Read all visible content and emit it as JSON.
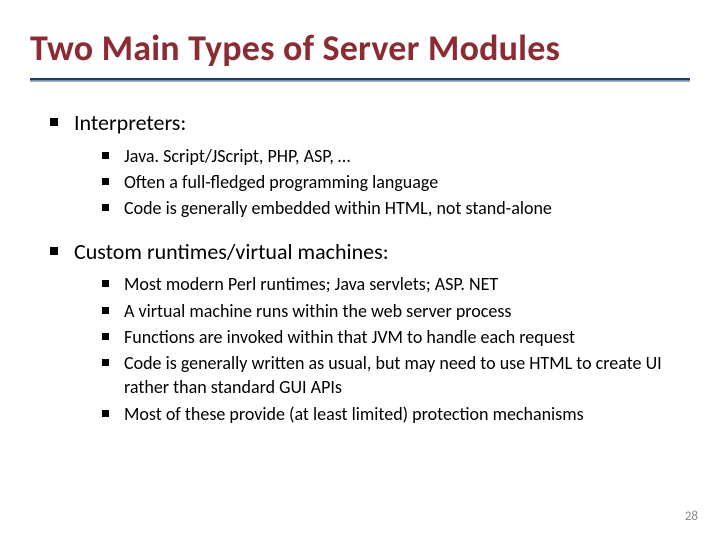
{
  "slide": {
    "title": "Two Main Types of Server Modules",
    "title_color": "#8b2b34",
    "rule_color_top": "#1f3e66",
    "rule_color_bottom": "#b9c7d7",
    "background_color": "#ffffff",
    "bullet_color": "#000000",
    "text_color": "#000000",
    "title_fontsize": 36,
    "body_fontsize_l1": 22,
    "body_fontsize_l2": 18,
    "page_number": "28",
    "pagenum_color": "#8a8a8a",
    "sections": [
      {
        "heading": "Interpreters:",
        "items": [
          "Java. Script/JScript, PHP, ASP, …",
          "Often a full-fledged programming language",
          "Code is generally embedded within HTML, not stand-alone"
        ]
      },
      {
        "heading": "Custom runtimes/virtual machines:",
        "items": [
          "Most modern Perl runtimes; Java servlets; ASP. NET",
          "A virtual machine runs within the web server process",
          "Functions are invoked within that JVM to handle each request",
          "Code is generally written as usual, but may need to use HTML to create UI rather than standard GUI APIs",
          "Most of these provide (at least limited) protection mechanisms"
        ]
      }
    ]
  }
}
